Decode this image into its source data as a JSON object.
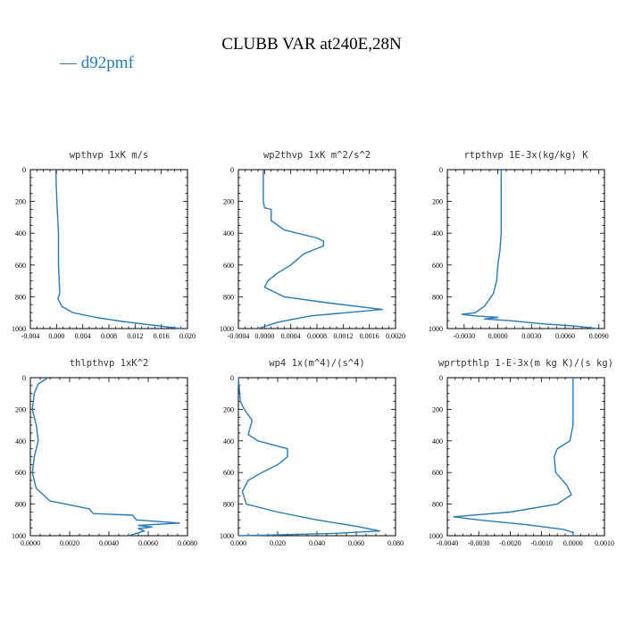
{
  "figure": {
    "title": "CLUBB VAR at240E,28N",
    "legend": {
      "label": "d92pmf",
      "color": "#2a7ab5"
    }
  },
  "chart_data": [
    {
      "type": "line",
      "title": "wpthvp  1xK m/s",
      "xlim": [
        -0.004,
        0.02
      ],
      "ylim": [
        1000,
        0
      ],
      "xticks": [
        -0.004,
        0.0,
        0.004,
        0.008,
        0.012,
        0.016,
        0.02
      ],
      "xtick_labels": [
        "-0.004",
        "0.000",
        "0.004",
        "0.008",
        "0.012",
        "0.016",
        "0.020"
      ],
      "yticks": [
        0,
        200,
        400,
        600,
        800,
        1000
      ],
      "ytick_labels": [
        "0",
        "200",
        "400",
        "600",
        "800",
        "1000"
      ],
      "series": [
        {
          "name": "d92pmf",
          "x": [
            -0.0001,
            -5e-05,
            0.0001,
            0.0003,
            0.0003,
            0.0003,
            0.0004,
            0.0005,
            0.0002,
            0.0008,
            0.0025,
            0.006,
            0.01,
            0.015,
            0.019
          ],
          "y": [
            0,
            100,
            250,
            400,
            480,
            600,
            700,
            780,
            810,
            860,
            900,
            930,
            955,
            980,
            1000
          ]
        }
      ]
    },
    {
      "type": "line",
      "title": "wp2thvp  1xK m^2/s^2",
      "xlim": [
        -0.0004,
        0.002
      ],
      "ylim": [
        1000,
        0
      ],
      "xticks": [
        -0.0004,
        0.0,
        0.0004,
        0.0008,
        0.0012,
        0.0016,
        0.002
      ],
      "xtick_labels": [
        "-0.0004",
        "0.0000",
        "0.0004",
        "0.0008",
        "0.0012",
        "0.0016",
        "0.0020"
      ],
      "yticks": [
        0,
        200,
        400,
        600,
        800,
        1000
      ],
      "ytick_labels": [
        "0",
        "200",
        "400",
        "600",
        "800",
        "1000"
      ],
      "series": [
        {
          "name": "d92pmf",
          "x": [
            -2e-05,
            -2e-05,
            0.0,
            0.0001,
            0.0001,
            0.0003,
            0.0008,
            0.0009,
            0.0009,
            0.0006,
            0.0004,
            0.0002,
            5e-05,
            0.0,
            0.0003,
            0.001,
            0.0018,
            0.0007,
            0.0002,
            -0.0001
          ],
          "y": [
            0,
            200,
            240,
            250,
            320,
            380,
            430,
            450,
            480,
            530,
            600,
            650,
            700,
            740,
            800,
            840,
            880,
            920,
            960,
            1000
          ]
        }
      ]
    },
    {
      "type": "line",
      "title": "rtpthvp  1E-3x(kg/kg) K",
      "xlim": [
        -0.0045,
        0.0095
      ],
      "ylim": [
        1000,
        0
      ],
      "xticks": [
        -0.003,
        0.0,
        0.003,
        0.006,
        0.009
      ],
      "xtick_labels": [
        "-0.0030",
        "0.0000",
        "0.0030",
        "0.0060",
        "0.0090"
      ],
      "yticks": [
        0,
        200,
        400,
        600,
        800,
        1000
      ],
      "ytick_labels": [
        "0",
        "200",
        "400",
        "600",
        "800",
        "1000"
      ],
      "series": [
        {
          "name": "d92pmf",
          "x": [
            0.0003,
            0.0003,
            0.0003,
            0.0002,
            0.0,
            -0.0001,
            -0.0004,
            -0.0008,
            -0.0012,
            -0.0016,
            -0.002,
            -0.0032,
            -0.002,
            0.0,
            -0.0012,
            0.001,
            0.004,
            0.007,
            0.0089
          ],
          "y": [
            0,
            200,
            400,
            500,
            600,
            700,
            780,
            820,
            860,
            880,
            900,
            910,
            920,
            930,
            940,
            950,
            970,
            985,
            1000
          ]
        }
      ]
    },
    {
      "type": "line",
      "title": "thlpthvp  1xK^2",
      "xlim": [
        0.0,
        0.008
      ],
      "ylim": [
        1000,
        0
      ],
      "xticks": [
        0.0,
        0.002,
        0.004,
        0.006,
        0.008
      ],
      "xtick_labels": [
        "0.0000",
        "0.0020",
        "0.0040",
        "0.0060",
        "0.0080"
      ],
      "yticks": [
        0,
        200,
        400,
        600,
        800,
        1000
      ],
      "ytick_labels": [
        "0",
        "200",
        "400",
        "600",
        "800",
        "1000"
      ],
      "series": [
        {
          "name": "d92pmf",
          "x": [
            0.0009,
            0.0004,
            0.0002,
            0.0001,
            0.0003,
            0.0004,
            0.0002,
            0.0001,
            0.0003,
            0.001,
            0.003,
            0.0032,
            0.0052,
            0.0054,
            0.0076,
            0.0055,
            0.0062,
            0.0055,
            0.0058,
            0.005
          ],
          "y": [
            0,
            40,
            100,
            200,
            300,
            400,
            500,
            600,
            700,
            780,
            830,
            860,
            870,
            900,
            920,
            935,
            945,
            955,
            970,
            1000
          ]
        }
      ]
    },
    {
      "type": "line",
      "title": "wp4  1x(m^4)/(s^4)",
      "xlim": [
        0.0,
        0.08
      ],
      "ylim": [
        1000,
        0
      ],
      "xticks": [
        0.0,
        0.02,
        0.04,
        0.06,
        0.08
      ],
      "xtick_labels": [
        "0.000",
        "0.020",
        "0.040",
        "0.060",
        "0.080"
      ],
      "yticks": [
        0,
        200,
        400,
        600,
        800,
        1000
      ],
      "ytick_labels": [
        "0",
        "200",
        "400",
        "600",
        "800",
        "1000"
      ],
      "series": [
        {
          "name": "d92pmf",
          "x": [
            0.0,
            0.001,
            0.003,
            0.007,
            0.005,
            0.01,
            0.025,
            0.025,
            0.02,
            0.012,
            0.005,
            0.002,
            0.004,
            0.02,
            0.04,
            0.06,
            0.072,
            0.05,
            0.02,
            0.0
          ],
          "y": [
            0,
            150,
            200,
            270,
            360,
            400,
            450,
            500,
            550,
            600,
            650,
            720,
            800,
            850,
            900,
            940,
            970,
            985,
            995,
            1000
          ]
        }
      ]
    },
    {
      "type": "line",
      "title": "wprtpthlp  1-E-3x(m kg K)/(s kg)",
      "xlim": [
        -0.004,
        0.001
      ],
      "ylim": [
        1000,
        0
      ],
      "xticks": [
        -0.004,
        -0.003,
        -0.002,
        -0.001,
        0.0,
        0.001
      ],
      "xtick_labels": [
        "-0.0040",
        "-0.0030",
        "-0.0020",
        "-0.0010",
        "0.0000",
        "0.0010"
      ],
      "yticks": [
        0,
        200,
        400,
        600,
        800,
        1000
      ],
      "ytick_labels": [
        "0",
        "200",
        "400",
        "600",
        "800",
        "1000"
      ],
      "series": [
        {
          "name": "d92pmf",
          "x": [
            0.0,
            0.0,
            0.0,
            -0.0001,
            -0.0005,
            -0.0006,
            -0.00055,
            -0.0002,
            -5e-05,
            -0.0005,
            -0.002,
            -0.0038,
            -0.003,
            -0.0015,
            -0.0003,
            0.0,
            0.0
          ],
          "y": [
            0,
            200,
            300,
            400,
            450,
            500,
            600,
            680,
            740,
            800,
            850,
            880,
            900,
            930,
            960,
            980,
            1000
          ]
        }
      ]
    }
  ]
}
